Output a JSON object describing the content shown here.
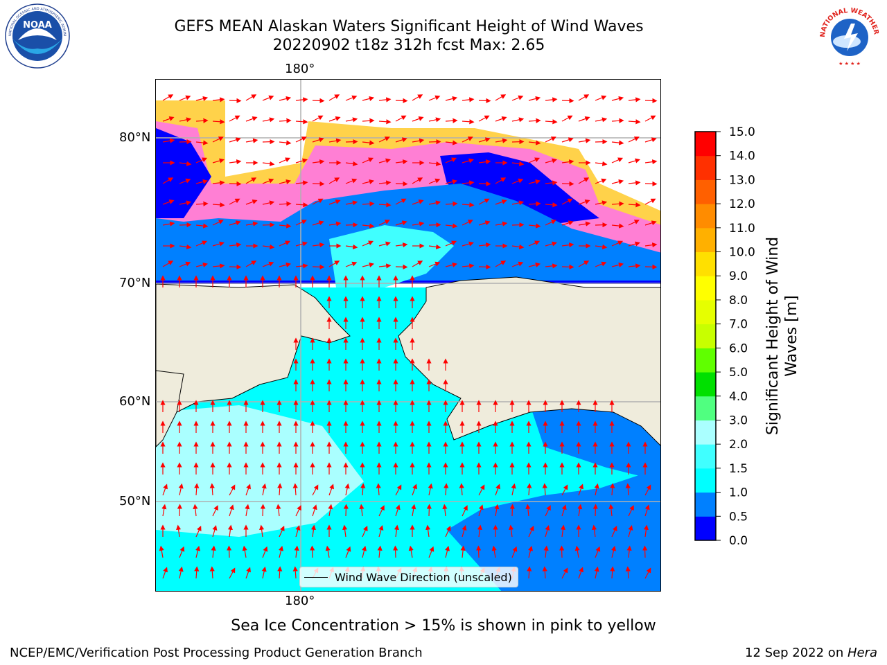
{
  "title": {
    "line1": "GEFS MEAN Alaskan Waters Significant Height of Wind Waves",
    "line2": "20220902 t18z 312h fcst   Max: 2.65"
  },
  "logos": {
    "left": "NOAA",
    "left_ring": "NATIONAL OCEANIC AND ATMOSPHERIC ADMINISTRATION · U.S. DEPARTMENT OF COMMERCE",
    "right_ring": "NATIONAL WEATHER SERVICE"
  },
  "map": {
    "lon_label_top": "180°",
    "lon_label_bottom": "180°",
    "lat_labels": [
      "80°N",
      "70°N",
      "60°N",
      "50°N"
    ],
    "legend_label": "Wind Wave Direction (unscaled)",
    "colors": {
      "land": "#efecdc",
      "ice_pink": "#ff7fd4",
      "ice_yellow": "#ffd24a",
      "arrow": "#ff0000",
      "grid": "#b0b0b0"
    }
  },
  "colorbar": {
    "title_line1": "Significant Height of Wind",
    "title_line2": "Waves [m]",
    "ticks": [
      "0.0",
      "0.5",
      "1.0",
      "1.5",
      "2.0",
      "3.0",
      "4.0",
      "5.0",
      "6.0",
      "7.0",
      "8.0",
      "9.0",
      "10.0",
      "11.0",
      "12.0",
      "13.0",
      "14.0",
      "15.0"
    ],
    "colors": [
      "#0000ff",
      "#0080ff",
      "#00ffff",
      "#40ffff",
      "#aaffff",
      "#50ff80",
      "#00e000",
      "#60ff00",
      "#c8ff00",
      "#e6ff00",
      "#ffff00",
      "#ffe000",
      "#ffb000",
      "#ff8c00",
      "#ff6000",
      "#ff3000",
      "#ff0000"
    ]
  },
  "note": "Sea Ice Concentration > 15% is shown in pink to yellow",
  "footer": {
    "left": "NCEP/EMC/Verification Post Processing Product Generation Branch",
    "right_date": "12 Sep 2022 on ",
    "right_machine": "Hera"
  }
}
